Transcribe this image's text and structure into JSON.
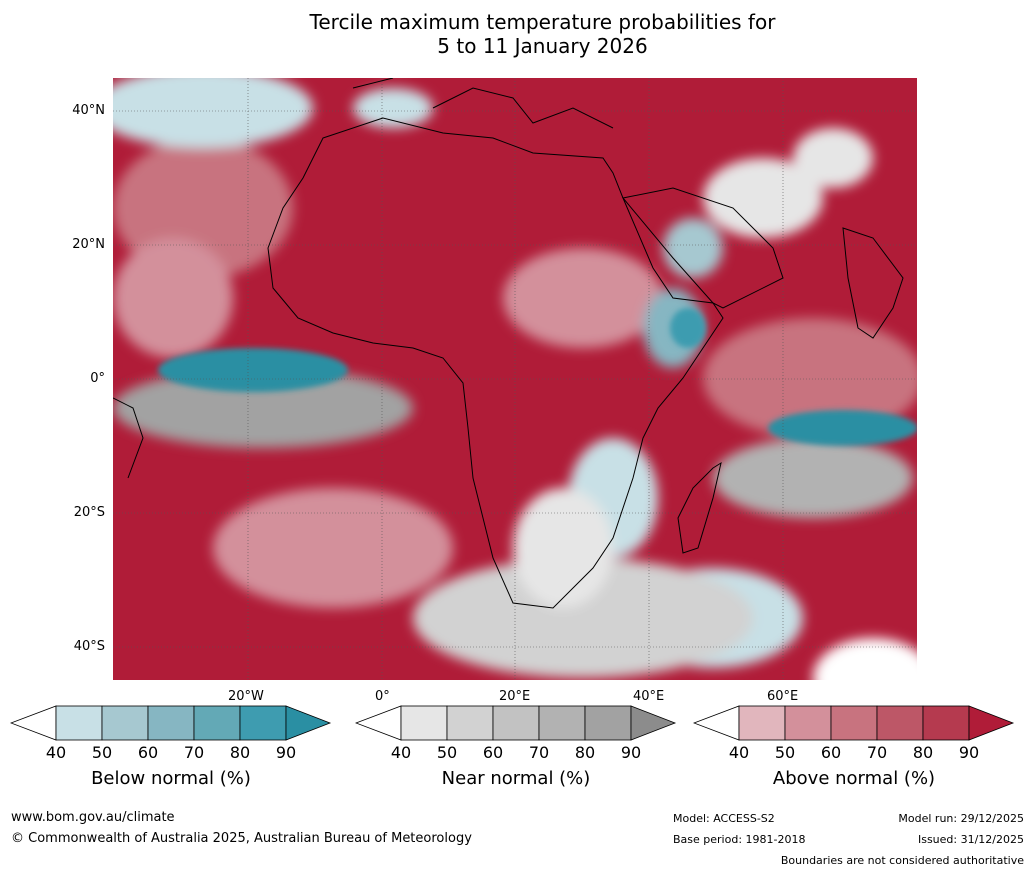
{
  "title": {
    "line1": "Tercile maximum temperature probabilities for",
    "line2": "5 to 11 January 2026"
  },
  "map": {
    "lat_labels": [
      "40°N",
      "20°N",
      "0°",
      "20°S",
      "40°S"
    ],
    "lon_labels": [
      "20°W",
      "0°",
      "20°E",
      "40°E",
      "60°E"
    ]
  },
  "colorbars": [
    {
      "label": "Below normal (%)",
      "ticks": [
        "40",
        "50",
        "60",
        "70",
        "80",
        "90"
      ],
      "colors": [
        "#ffffff",
        "#c8e0e6",
        "#a6c8d0",
        "#86b6c2",
        "#63a9b6",
        "#3e9cb0",
        "#2a8fa3"
      ]
    },
    {
      "label": "Near normal (%)",
      "ticks": [
        "40",
        "50",
        "60",
        "70",
        "80",
        "90"
      ],
      "colors": [
        "#ffffff",
        "#e6e6e6",
        "#d2d2d2",
        "#c2c2c2",
        "#b2b2b2",
        "#a2a2a2",
        "#8c8c8c"
      ]
    },
    {
      "label": "Above normal (%)",
      "ticks": [
        "40",
        "50",
        "60",
        "70",
        "80",
        "90"
      ],
      "colors": [
        "#ffffff",
        "#e1b6bd",
        "#d3909b",
        "#c8737f",
        "#bd5767",
        "#b53a4f",
        "#b01c38"
      ]
    }
  ],
  "footer": {
    "website": "www.bom.gov.au/climate",
    "copyright": "© Commonwealth of Australia 2025, Australian Bureau of Meteorology",
    "model": "Model: ACCESS-S2",
    "base_period": "Base period: 1981-2018",
    "model_run": "Model run: 29/12/2025",
    "issued": "Issued: 31/12/2025",
    "disclaimer": "Boundaries are not considered authoritative"
  }
}
